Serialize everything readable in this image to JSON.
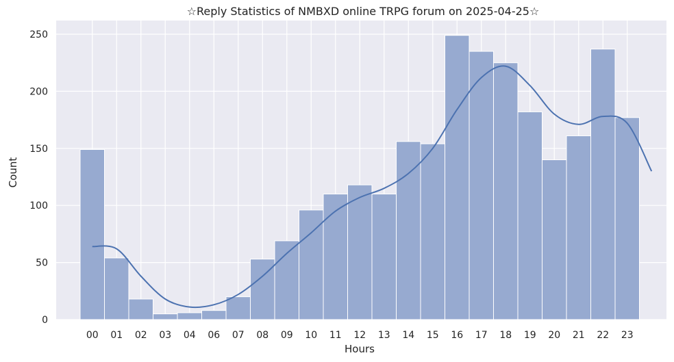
{
  "chart_data": {
    "type": "bar",
    "title": "☆Reply Statistics of NMBXD online TRPG forum on 2025-04-25☆",
    "xlabel": "Hours",
    "ylabel": "Count",
    "categories": [
      "00",
      "01",
      "02",
      "03",
      "04",
      "06",
      "07",
      "08",
      "09",
      "10",
      "11",
      "12",
      "13",
      "14",
      "15",
      "16",
      "17",
      "18",
      "19",
      "20",
      "21",
      "22",
      "23"
    ],
    "values": [
      149,
      54,
      18,
      5,
      6,
      8,
      20,
      53,
      69,
      96,
      110,
      118,
      110,
      156,
      154,
      249,
      235,
      225,
      182,
      140,
      161,
      237,
      177
    ],
    "ylim": [
      0,
      262
    ],
    "yticks": [
      0,
      50,
      100,
      150,
      200,
      250
    ],
    "grid": true,
    "legend": "none",
    "kde": {
      "x_hours": [
        0,
        1,
        2,
        3,
        4,
        5,
        6,
        7,
        8,
        9,
        10,
        11,
        12,
        13,
        14,
        15,
        16,
        17,
        18,
        19,
        20,
        21,
        22,
        23
      ],
      "values": [
        64,
        62,
        38,
        18,
        11,
        13,
        22,
        38,
        58,
        76,
        95,
        107,
        115,
        128,
        150,
        184,
        212,
        222,
        205,
        180,
        171,
        178,
        172,
        130
      ]
    },
    "colors": {
      "background": "#eaeaf2",
      "grid": "#ffffff",
      "bar_fill": "#97aad0",
      "bar_stroke": "#ffffff",
      "line": "#4c72b0"
    }
  }
}
